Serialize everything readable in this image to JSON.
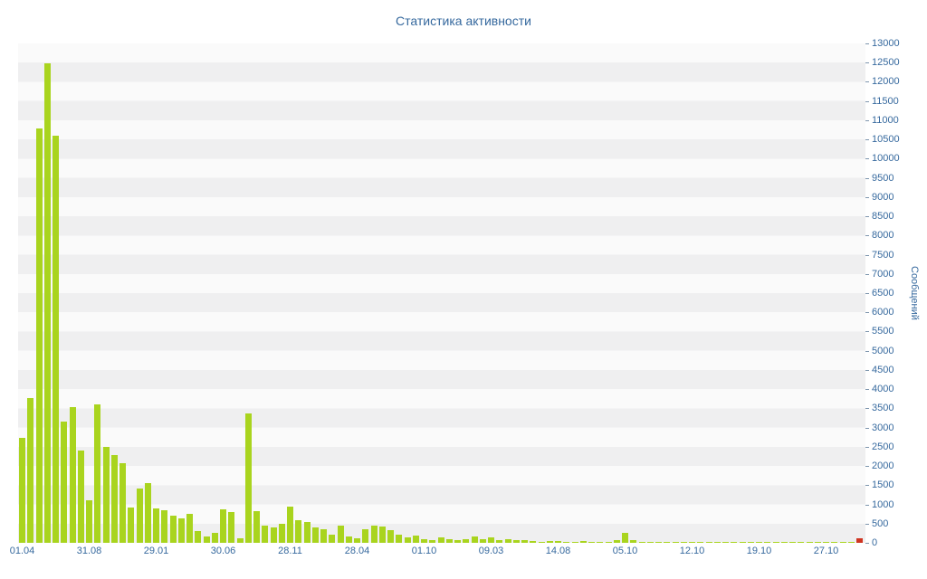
{
  "title": "Статистика активности",
  "y_axis": {
    "label": "Сообщений",
    "min": 0,
    "max": 13000,
    "step": 500,
    "tick_labels": [
      "0",
      "500",
      "1000",
      "1500",
      "2000",
      "2500",
      "3000",
      "3500",
      "4000",
      "4500",
      "5000",
      "5500",
      "6000",
      "6500",
      "7000",
      "7500",
      "8000",
      "8500",
      "9000",
      "9500",
      "10000",
      "10500",
      "11000",
      "11500",
      "12000",
      "12500",
      "13000"
    ]
  },
  "x_axis": {
    "tick_labels": [
      "01.04",
      "31.08",
      "29.01",
      "30.06",
      "28.11",
      "28.04",
      "01.10",
      "09.03",
      "14.08",
      "05.10",
      "12.10",
      "19.10",
      "27.10"
    ],
    "bars_per_label": 8
  },
  "colors": {
    "bar": "#a9d41e",
    "last_bar": "#cf3421",
    "text": "#36699e",
    "stripe_dark": "#efeff0",
    "stripe_light": "#fafafa"
  },
  "chart_data": {
    "type": "bar",
    "title": "Статистика активности",
    "xlabel": "",
    "ylabel": "Сообщений",
    "ylim": [
      0,
      13000
    ],
    "grid": "horizontal striped bands every 500",
    "legend_position": "none",
    "x_tick_labels": [
      "01.04",
      "31.08",
      "29.01",
      "30.06",
      "28.11",
      "28.04",
      "01.10",
      "09.03",
      "14.08",
      "05.10",
      "12.10",
      "19.10",
      "27.10"
    ],
    "values": [
      2730,
      3770,
      10790,
      12480,
      10600,
      3160,
      3530,
      2400,
      1100,
      3600,
      2500,
      2280,
      2070,
      920,
      1410,
      1550,
      900,
      850,
      700,
      640,
      750,
      300,
      165,
      250,
      870,
      800,
      120,
      3370,
      820,
      450,
      400,
      490,
      950,
      590,
      540,
      400,
      350,
      210,
      450,
      165,
      120,
      350,
      450,
      420,
      330,
      210,
      140,
      190,
      100,
      80,
      150,
      100,
      60,
      100,
      160,
      90,
      140,
      60,
      90,
      60,
      80,
      40,
      30,
      50,
      40,
      30,
      20,
      40,
      30,
      20,
      30,
      60,
      250,
      60,
      30,
      20,
      30,
      20,
      15,
      20,
      15,
      15,
      10,
      15,
      20,
      15,
      10,
      30,
      20,
      15,
      10,
      15,
      10,
      15,
      10,
      15,
      10,
      15,
      20,
      15,
      110
    ],
    "bar_color": "#a9d41e",
    "last_bar_color": "#cf3421"
  }
}
